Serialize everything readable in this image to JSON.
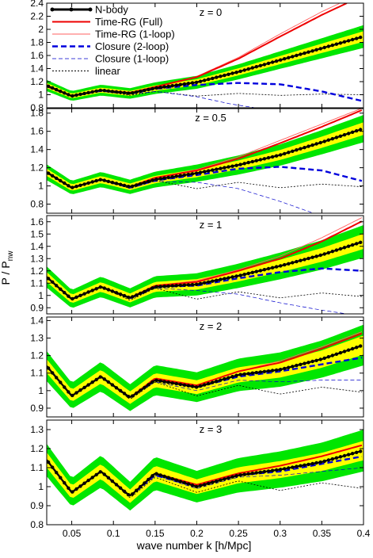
{
  "figure": {
    "ylabel": "P / P",
    "ylabel_sub": "nw",
    "xlabel": "wave number k [h/Mpc]",
    "xlim": [
      0.02,
      0.4
    ],
    "x_ticks": [
      {
        "v": 0.05,
        "label": "0.05"
      },
      {
        "v": 0.1,
        "label": "0.1"
      },
      {
        "v": 0.15,
        "label": "0.15"
      },
      {
        "v": 0.2,
        "label": "0.2"
      },
      {
        "v": 0.25,
        "label": "0.25"
      },
      {
        "v": 0.3,
        "label": "0.3"
      },
      {
        "v": 0.35,
        "label": "0.35"
      },
      {
        "v": 0.4,
        "label": "0.4"
      }
    ],
    "band_colors": {
      "outer": "#00e600",
      "inner": "#ffff00"
    },
    "legend": [
      {
        "label": "N-body",
        "color": "#000000",
        "style": "nbody"
      },
      {
        "label": "Time-RG (Full)",
        "color": "#ee0000",
        "style": "thick"
      },
      {
        "label": "Time-RG (1-loop)",
        "color": "#ff6060",
        "style": "thin"
      },
      {
        "label": "Closure (2-loop)",
        "color": "#0000dd",
        "style": "dashed-thick"
      },
      {
        "label": "Closure (1-loop)",
        "color": "#0000cc",
        "style": "dashed-thin"
      },
      {
        "label": "linear",
        "color": "#000000",
        "style": "dotted"
      }
    ]
  },
  "chart_data": [
    {
      "type": "line",
      "panel": "z = 0",
      "ylim": [
        0.8,
        2.4
      ],
      "y_ticks": [
        "0.8",
        "1",
        "1.2",
        "1.4",
        "1.6",
        "1.8",
        "2",
        "2.2",
        "2.4"
      ],
      "series": [
        {
          "name": "N-body",
          "x": [
            0.02,
            0.05,
            0.085,
            0.12,
            0.15,
            0.2,
            0.25,
            0.3,
            0.35,
            0.4
          ],
          "y": [
            1.14,
            0.98,
            1.07,
            1.02,
            1.1,
            1.19,
            1.35,
            1.53,
            1.71,
            1.89
          ]
        },
        {
          "name": "Time-RG (Full)",
          "x": [
            0.02,
            0.05,
            0.085,
            0.12,
            0.15,
            0.2,
            0.25,
            0.3,
            0.35,
            0.38
          ],
          "y": [
            1.13,
            0.98,
            1.07,
            1.03,
            1.12,
            1.27,
            1.55,
            1.89,
            2.22,
            2.4
          ]
        },
        {
          "name": "Time-RG (1-loop)",
          "x": [
            0.02,
            0.05,
            0.085,
            0.12,
            0.15,
            0.2,
            0.25,
            0.3,
            0.35,
            0.372
          ],
          "y": [
            1.13,
            0.98,
            1.07,
            1.03,
            1.12,
            1.28,
            1.57,
            1.93,
            2.27,
            2.4
          ]
        },
        {
          "name": "Closure (2-loop)",
          "x": [
            0.02,
            0.05,
            0.085,
            0.12,
            0.15,
            0.2,
            0.25,
            0.3,
            0.35,
            0.4
          ],
          "y": [
            1.13,
            0.98,
            1.06,
            1.02,
            1.09,
            1.15,
            1.18,
            1.16,
            1.05,
            0.9
          ]
        },
        {
          "name": "Closure (1-loop)",
          "x": [
            0.02,
            0.05,
            0.085,
            0.12,
            0.15,
            0.2,
            0.24,
            0.27
          ],
          "y": [
            1.13,
            0.98,
            1.06,
            1.01,
            1.05,
            0.97,
            0.86,
            0.8
          ]
        },
        {
          "name": "linear",
          "x": [
            0.02,
            0.05,
            0.085,
            0.12,
            0.15,
            0.2,
            0.25,
            0.3,
            0.35,
            0.4
          ],
          "y": [
            1.13,
            0.97,
            1.06,
            0.99,
            1.05,
            0.98,
            1.02,
            0.99,
            1.01,
            1.0
          ]
        }
      ]
    },
    {
      "type": "line",
      "panel": "z = 0.5",
      "ylim": [
        0.7,
        1.85
      ],
      "y_ticks": [
        "0.8",
        "1",
        "1.2",
        "1.4",
        "1.6",
        "1.8"
      ],
      "series": [
        {
          "name": "N-body",
          "x": [
            0.02,
            0.05,
            0.085,
            0.12,
            0.15,
            0.2,
            0.25,
            0.3,
            0.35,
            0.4
          ],
          "y": [
            1.15,
            0.98,
            1.07,
            0.99,
            1.07,
            1.14,
            1.23,
            1.34,
            1.48,
            1.63
          ]
        },
        {
          "name": "Time-RG (Full)",
          "x": [
            0.02,
            0.05,
            0.085,
            0.12,
            0.15,
            0.2,
            0.25,
            0.3,
            0.35,
            0.4
          ],
          "y": [
            1.15,
            0.98,
            1.07,
            0.99,
            1.09,
            1.17,
            1.3,
            1.47,
            1.65,
            1.84
          ]
        },
        {
          "name": "Time-RG (1-loop)",
          "x": [
            0.02,
            0.05,
            0.085,
            0.12,
            0.15,
            0.2,
            0.25,
            0.3,
            0.35,
            0.4
          ],
          "y": [
            1.15,
            0.98,
            1.07,
            0.99,
            1.09,
            1.18,
            1.32,
            1.5,
            1.68,
            1.86
          ]
        },
        {
          "name": "Closure (2-loop)",
          "x": [
            0.02,
            0.05,
            0.085,
            0.12,
            0.15,
            0.2,
            0.25,
            0.3,
            0.35,
            0.4
          ],
          "y": [
            1.15,
            0.98,
            1.07,
            0.98,
            1.06,
            1.12,
            1.19,
            1.21,
            1.17,
            1.05
          ]
        },
        {
          "name": "Closure (1-loop)",
          "x": [
            0.02,
            0.05,
            0.085,
            0.12,
            0.15,
            0.2,
            0.25,
            0.3,
            0.34
          ],
          "y": [
            1.15,
            0.98,
            1.07,
            0.98,
            1.05,
            1.04,
            0.97,
            0.83,
            0.7
          ]
        },
        {
          "name": "linear",
          "x": [
            0.02,
            0.05,
            0.085,
            0.12,
            0.15,
            0.2,
            0.25,
            0.3,
            0.35,
            0.4
          ],
          "y": [
            1.15,
            0.98,
            1.07,
            0.97,
            1.06,
            0.97,
            1.04,
            0.98,
            1.02,
            0.99
          ]
        }
      ]
    },
    {
      "type": "line",
      "panel": "z = 1",
      "ylim": [
        0.85,
        1.65
      ],
      "y_ticks": [
        "0.9",
        "1",
        "1.1",
        "1.2",
        "1.3",
        "1.4",
        "1.5",
        "1.6"
      ],
      "series": [
        {
          "name": "N-body",
          "x": [
            0.02,
            0.05,
            0.085,
            0.12,
            0.15,
            0.2,
            0.25,
            0.3,
            0.35,
            0.4
          ],
          "y": [
            1.15,
            0.97,
            1.07,
            0.98,
            1.07,
            1.09,
            1.16,
            1.24,
            1.33,
            1.44
          ]
        },
        {
          "name": "Time-RG (Full)",
          "x": [
            0.02,
            0.05,
            0.085,
            0.12,
            0.15,
            0.2,
            0.25,
            0.3,
            0.35,
            0.4
          ],
          "y": [
            1.15,
            0.97,
            1.07,
            0.98,
            1.08,
            1.11,
            1.2,
            1.3,
            1.44,
            1.61
          ]
        },
        {
          "name": "Time-RG (1-loop)",
          "x": [
            0.02,
            0.05,
            0.085,
            0.12,
            0.15,
            0.2,
            0.25,
            0.3,
            0.35,
            0.4
          ],
          "y": [
            1.15,
            0.97,
            1.07,
            0.98,
            1.08,
            1.12,
            1.21,
            1.32,
            1.47,
            1.64
          ]
        },
        {
          "name": "Closure (2-loop)",
          "x": [
            0.02,
            0.05,
            0.085,
            0.12,
            0.15,
            0.2,
            0.25,
            0.3,
            0.35,
            0.4
          ],
          "y": [
            1.15,
            0.97,
            1.07,
            0.98,
            1.07,
            1.08,
            1.14,
            1.19,
            1.22,
            1.2
          ]
        },
        {
          "name": "Closure (1-loop)",
          "x": [
            0.02,
            0.05,
            0.085,
            0.12,
            0.15,
            0.2,
            0.25,
            0.3,
            0.35,
            0.38
          ],
          "y": [
            1.15,
            0.97,
            1.07,
            0.97,
            1.06,
            1.04,
            1.01,
            0.94,
            0.88,
            0.85
          ]
        },
        {
          "name": "linear",
          "x": [
            0.02,
            0.05,
            0.085,
            0.12,
            0.15,
            0.2,
            0.25,
            0.3,
            0.35,
            0.4
          ],
          "y": [
            1.15,
            0.97,
            1.07,
            0.96,
            1.06,
            0.97,
            1.03,
            0.98,
            1.02,
            0.99
          ]
        }
      ]
    },
    {
      "type": "line",
      "panel": "z = 2",
      "ylim": [
        0.85,
        1.42
      ],
      "y_ticks": [
        "0.9",
        "1",
        "1.1",
        "1.2",
        "1.3",
        "1.4"
      ],
      "series": [
        {
          "name": "N-body",
          "x": [
            0.02,
            0.05,
            0.085,
            0.12,
            0.15,
            0.2,
            0.25,
            0.3,
            0.35,
            0.4
          ],
          "y": [
            1.14,
            0.97,
            1.08,
            0.96,
            1.06,
            1.02,
            1.09,
            1.12,
            1.18,
            1.26
          ]
        },
        {
          "name": "Time-RG (Full)",
          "x": [
            0.02,
            0.05,
            0.085,
            0.12,
            0.15,
            0.2,
            0.25,
            0.3,
            0.35,
            0.4
          ],
          "y": [
            1.14,
            0.97,
            1.08,
            0.96,
            1.07,
            1.03,
            1.11,
            1.16,
            1.24,
            1.33
          ]
        },
        {
          "name": "Time-RG (1-loop)",
          "x": [
            0.02,
            0.05,
            0.085,
            0.12,
            0.15,
            0.2,
            0.25,
            0.3,
            0.35,
            0.4
          ],
          "y": [
            1.14,
            0.97,
            1.08,
            0.96,
            1.07,
            1.03,
            1.11,
            1.17,
            1.25,
            1.34
          ]
        },
        {
          "name": "Closure (2-loop)",
          "x": [
            0.02,
            0.05,
            0.085,
            0.12,
            0.15,
            0.2,
            0.25,
            0.3,
            0.35,
            0.4
          ],
          "y": [
            1.14,
            0.97,
            1.08,
            0.96,
            1.06,
            1.02,
            1.08,
            1.11,
            1.15,
            1.19
          ]
        },
        {
          "name": "Closure (1-loop)",
          "x": [
            0.02,
            0.05,
            0.085,
            0.12,
            0.15,
            0.2,
            0.25,
            0.3,
            0.35,
            0.4
          ],
          "y": [
            1.14,
            0.97,
            1.08,
            0.96,
            1.05,
            1.0,
            1.06,
            1.05,
            1.06,
            1.06
          ]
        },
        {
          "name": "linear",
          "x": [
            0.02,
            0.05,
            0.085,
            0.12,
            0.15,
            0.2,
            0.25,
            0.3,
            0.35,
            0.4
          ],
          "y": [
            1.14,
            0.97,
            1.08,
            0.95,
            1.05,
            0.97,
            1.03,
            0.98,
            1.02,
            0.99
          ]
        }
      ]
    },
    {
      "type": "line",
      "panel": "z = 3",
      "ylim": [
        0.8,
        1.35
      ],
      "y_ticks": [
        "0.8",
        "0.9",
        "1",
        "1.1",
        "1.2",
        "1.3"
      ],
      "series": [
        {
          "name": "N-body",
          "x": [
            0.02,
            0.05,
            0.085,
            0.12,
            0.15,
            0.2,
            0.25,
            0.3,
            0.35,
            0.4
          ],
          "y": [
            1.14,
            0.97,
            1.08,
            0.95,
            1.07,
            1.0,
            1.06,
            1.09,
            1.13,
            1.19
          ]
        },
        {
          "name": "Time-RG (Full)",
          "x": [
            0.02,
            0.05,
            0.085,
            0.12,
            0.15,
            0.2,
            0.25,
            0.3,
            0.35,
            0.4
          ],
          "y": [
            1.14,
            0.97,
            1.08,
            0.95,
            1.07,
            1.01,
            1.07,
            1.11,
            1.16,
            1.22
          ]
        },
        {
          "name": "Time-RG (1-loop)",
          "x": [
            0.02,
            0.05,
            0.085,
            0.12,
            0.15,
            0.2,
            0.25,
            0.3,
            0.35,
            0.4
          ],
          "y": [
            1.14,
            0.97,
            1.08,
            0.95,
            1.07,
            1.01,
            1.07,
            1.11,
            1.16,
            1.22
          ]
        },
        {
          "name": "Closure (2-loop)",
          "x": [
            0.02,
            0.05,
            0.085,
            0.12,
            0.15,
            0.2,
            0.25,
            0.3,
            0.35,
            0.4
          ],
          "y": [
            1.14,
            0.97,
            1.08,
            0.95,
            1.06,
            1.0,
            1.06,
            1.08,
            1.12,
            1.16
          ]
        },
        {
          "name": "Closure (1-loop)",
          "x": [
            0.02,
            0.05,
            0.085,
            0.12,
            0.15,
            0.2,
            0.25,
            0.3,
            0.35,
            0.4
          ],
          "y": [
            1.14,
            0.97,
            1.08,
            0.95,
            1.06,
            0.99,
            1.05,
            1.06,
            1.08,
            1.1
          ]
        },
        {
          "name": "linear",
          "x": [
            0.02,
            0.05,
            0.085,
            0.12,
            0.15,
            0.2,
            0.25,
            0.3,
            0.35,
            0.4
          ],
          "y": [
            1.14,
            0.97,
            1.08,
            0.94,
            1.05,
            0.97,
            1.03,
            0.98,
            1.02,
            0.99
          ]
        }
      ]
    }
  ]
}
